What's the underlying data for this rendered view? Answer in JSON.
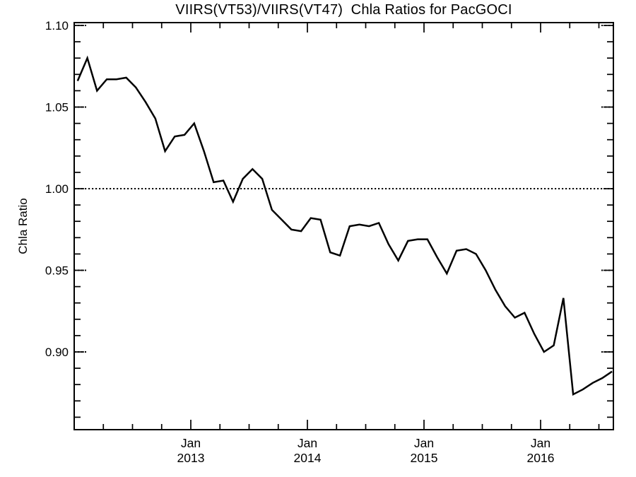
{
  "chart": {
    "title": "VIIRS(VT53)/VIIRS(VT47)  Chla Ratios for PacGOCI",
    "ylabel": "Chla Ratio"
  },
  "chart_data": {
    "type": "line",
    "title": "VIIRS(VT53)/VIIRS(VT47)  Chla Ratios for PacGOCI",
    "xlabel": "",
    "ylabel": "Chla Ratio",
    "series_name": "VIIRS(VT53)/VIIRS(VT47) Chla ratio",
    "x": [
      "2012-01",
      "2012-02",
      "2012-03",
      "2012-04",
      "2012-05",
      "2012-06",
      "2012-07",
      "2012-08",
      "2012-09",
      "2012-10",
      "2012-11",
      "2012-12",
      "2013-01",
      "2013-02",
      "2013-03",
      "2013-04",
      "2013-05",
      "2013-06",
      "2013-07",
      "2013-08",
      "2013-09",
      "2013-10",
      "2013-11",
      "2013-12",
      "2014-01",
      "2014-02",
      "2014-03",
      "2014-04",
      "2014-05",
      "2014-06",
      "2014-07",
      "2014-08",
      "2014-09",
      "2014-10",
      "2014-11",
      "2014-12",
      "2015-01",
      "2015-02",
      "2015-03",
      "2015-04",
      "2015-05",
      "2015-06",
      "2015-07",
      "2015-08",
      "2015-09",
      "2015-10",
      "2015-11",
      "2015-12",
      "2016-01",
      "2016-02",
      "2016-03",
      "2016-04",
      "2016-05",
      "2016-06",
      "2016-07",
      "2016-08"
    ],
    "values": [
      1.066,
      1.08,
      1.06,
      1.067,
      1.067,
      1.068,
      1.062,
      1.053,
      1.043,
      1.023,
      1.032,
      1.033,
      1.04,
      1.023,
      1.004,
      1.005,
      0.992,
      1.006,
      1.012,
      1.006,
      0.987,
      0.981,
      0.975,
      0.974,
      0.982,
      0.981,
      0.961,
      0.959,
      0.977,
      0.978,
      0.977,
      0.979,
      0.966,
      0.956,
      0.968,
      0.969,
      0.969,
      0.958,
      0.948,
      0.962,
      0.963,
      0.96,
      0.95,
      0.938,
      0.928,
      0.921,
      0.924,
      0.911,
      0.9,
      0.904,
      0.933,
      0.874,
      0.877,
      0.881,
      0.884,
      0.888
    ],
    "ylim": [
      0.852,
      1.102
    ],
    "yticks_major": [
      0.9,
      0.95,
      1.0,
      1.05,
      1.1
    ],
    "ytick_labels": [
      "0.90",
      "0.95",
      "1.00",
      "1.05",
      "1.10"
    ],
    "ytick_minor_step": 0.01,
    "xtick_major_labels": [
      {
        "line1": "Jan",
        "line2": "2013",
        "month": 12
      },
      {
        "line1": "Jan",
        "line2": "2014",
        "month": 24
      },
      {
        "line1": "Jan",
        "line2": "2015",
        "month": 36
      },
      {
        "line1": "Jan",
        "line2": "2016",
        "month": 48
      }
    ],
    "xtick_minor_step_months": 3,
    "reference_line_y": 1.0,
    "grid": "dotted stubs at major y-ticks on both edges; full dotted line at y=1.00",
    "legend": "none",
    "line_color": "#000000",
    "axis_color": "#000000",
    "background_color": "#ffffff"
  }
}
